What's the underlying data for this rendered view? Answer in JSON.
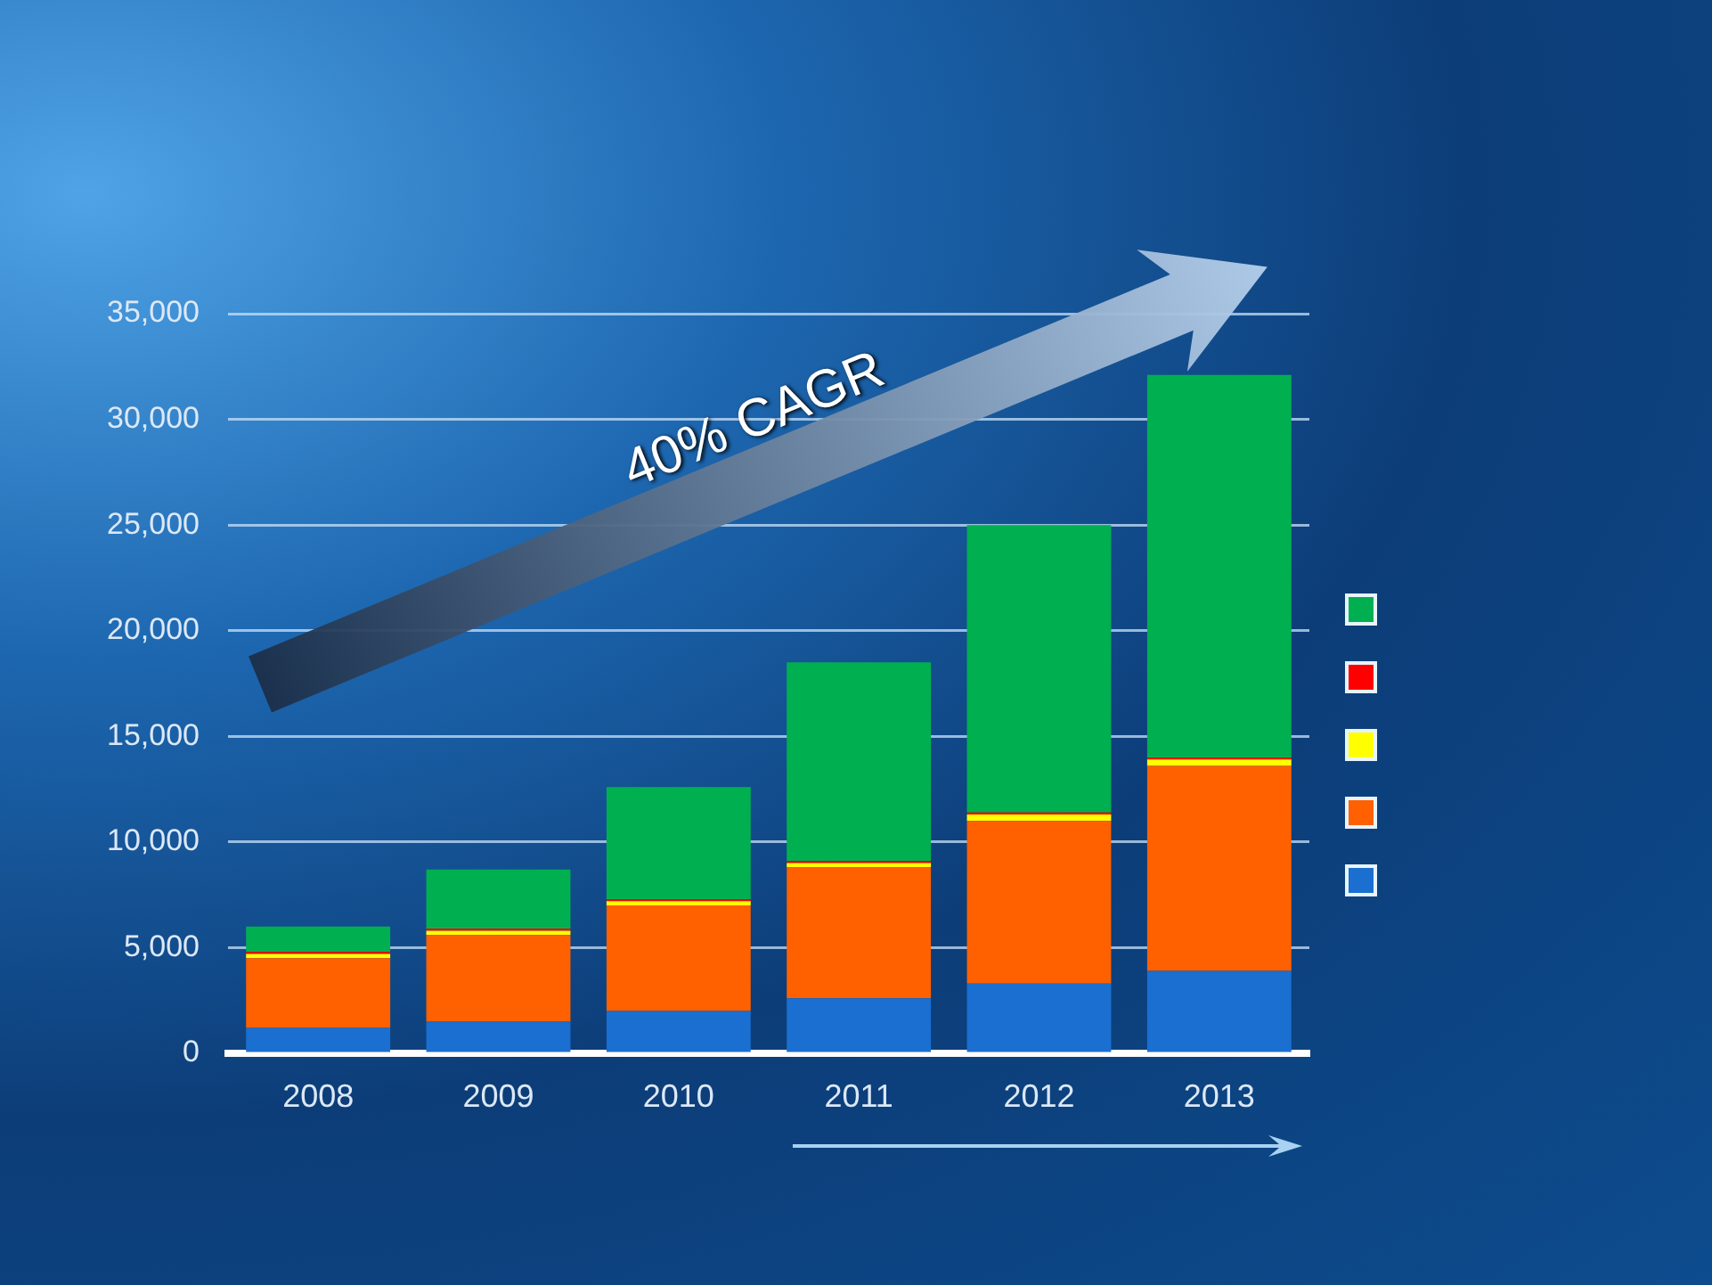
{
  "chart_data": {
    "type": "bar",
    "stacked": true,
    "categories": [
      "2008",
      "2009",
      "2010",
      "2011",
      "2012",
      "2013"
    ],
    "series": [
      {
        "color": "#1a6fd0",
        "values": [
          1200,
          1500,
          2000,
          2600,
          3300,
          3900
        ]
      },
      {
        "color": "#ff6000",
        "values": [
          3300,
          4100,
          5000,
          6200,
          7700,
          9700
        ]
      },
      {
        "color": "#ffff00",
        "values": [
          200,
          200,
          200,
          200,
          300,
          300
        ]
      },
      {
        "color": "#ff0000",
        "values": [
          100,
          100,
          100,
          100,
          100,
          100
        ]
      },
      {
        "color": "#00b050",
        "values": [
          1200,
          2800,
          5300,
          9400,
          13600,
          18100
        ]
      }
    ],
    "ylim": [
      0,
      35000
    ],
    "yticks": [
      0,
      {
        "value": 5000,
        "label": "5,000"
      },
      {
        "value": 10000,
        "label": "10,000"
      },
      {
        "value": 15000,
        "label": "15,000"
      },
      {
        "value": 20000,
        "label": "20,000"
      },
      {
        "value": 25000,
        "label": "25,000"
      },
      {
        "value": 30000,
        "label": "30,000"
      },
      {
        "value": 35000,
        "label": "35,000"
      }
    ],
    "grid": "y",
    "annotations": [
      "40% CAGR"
    ]
  }
}
